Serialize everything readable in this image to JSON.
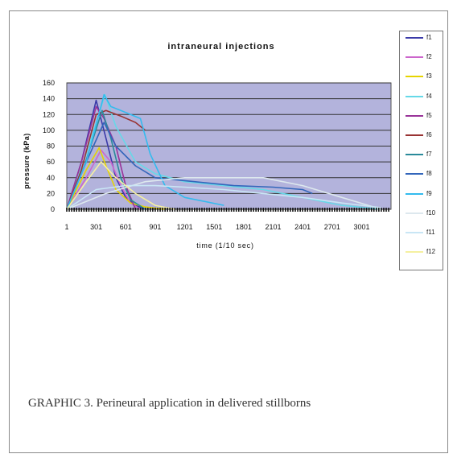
{
  "caption": "GRAPHIC 3.  Perineural application in delivered stillborns",
  "chart_data": {
    "type": "line",
    "title": "intraneural injections",
    "xlabel": "time (1/10 sec)",
    "ylabel": "pressure (kPa)",
    "xlim": [
      1,
      3300
    ],
    "ylim": [
      0,
      160
    ],
    "xticks": [
      "1",
      "301",
      "601",
      "901",
      "1201",
      "1501",
      "1801",
      "2101",
      "2401",
      "2701",
      "3001"
    ],
    "yticks": [
      0,
      20,
      40,
      60,
      80,
      100,
      120,
      140,
      160
    ],
    "grid": true,
    "plot_background": "#b3b3dc",
    "legend_position": "right",
    "series": [
      {
        "name": "f1",
        "color": "#3a3aa8",
        "x": [
          1,
          150,
          300,
          400,
          500,
          600,
          700,
          800
        ],
        "y": [
          0,
          60,
          138,
          90,
          40,
          15,
          5,
          0
        ]
      },
      {
        "name": "f2",
        "color": "#cc66cc",
        "x": [
          1,
          200,
          350,
          450,
          550,
          650,
          750
        ],
        "y": [
          0,
          40,
          75,
          60,
          30,
          8,
          0
        ]
      },
      {
        "name": "f3",
        "color": "#e6d400",
        "x": [
          1,
          200,
          330,
          400,
          500,
          650,
          800,
          1000
        ],
        "y": [
          0,
          50,
          78,
          55,
          25,
          8,
          3,
          0
        ]
      },
      {
        "name": "f4",
        "color": "#66d9e8",
        "x": [
          1,
          200,
          390,
          500,
          700,
          900,
          1200,
          1600,
          2000,
          2400,
          2800,
          3200
        ],
        "y": [
          0,
          70,
          145,
          105,
          60,
          45,
          35,
          30,
          25,
          15,
          5,
          0
        ]
      },
      {
        "name": "f5",
        "color": "#993399",
        "x": [
          1,
          150,
          300,
          380,
          500,
          600,
          700
        ],
        "y": [
          0,
          60,
          130,
          115,
          80,
          30,
          0
        ]
      },
      {
        "name": "f6",
        "color": "#993333",
        "x": [
          1,
          150,
          300,
          400,
          550,
          700,
          800
        ],
        "y": [
          0,
          50,
          120,
          125,
          118,
          110,
          100
        ]
      },
      {
        "name": "f7",
        "color": "#2a8a9a",
        "x": [
          1,
          180,
          360,
          450,
          550,
          650,
          800
        ],
        "y": [
          0,
          55,
          125,
          90,
          40,
          12,
          0
        ]
      },
      {
        "name": "f8",
        "color": "#3366bb",
        "x": [
          1,
          200,
          380,
          500,
          700,
          900,
          1300,
          1700,
          2100,
          2400,
          2500
        ],
        "y": [
          0,
          60,
          110,
          80,
          55,
          40,
          35,
          30,
          28,
          25,
          20
        ]
      },
      {
        "name": "f9",
        "color": "#33bbee",
        "x": [
          1,
          200,
          380,
          450,
          550,
          650,
          750,
          850,
          1000,
          1200,
          1600
        ],
        "y": [
          0,
          60,
          145,
          130,
          125,
          120,
          115,
          70,
          30,
          15,
          5
        ]
      },
      {
        "name": "f10",
        "color": "#dde8ee",
        "x": [
          1,
          400,
          800,
          1200,
          1600,
          2000,
          2400,
          2800,
          3200
        ],
        "y": [
          0,
          20,
          35,
          40,
          40,
          40,
          30,
          15,
          0
        ]
      },
      {
        "name": "f11",
        "color": "#c9e6f5",
        "x": [
          1,
          300,
          600,
          900,
          1200,
          1600,
          2000,
          2400,
          2800,
          3200
        ],
        "y": [
          0,
          25,
          30,
          30,
          28,
          25,
          20,
          15,
          8,
          2
        ]
      },
      {
        "name": "f12",
        "color": "#f5f0a0",
        "x": [
          1,
          200,
          350,
          500,
          700,
          900,
          1100
        ],
        "y": [
          0,
          35,
          60,
          40,
          20,
          5,
          0
        ]
      }
    ]
  }
}
